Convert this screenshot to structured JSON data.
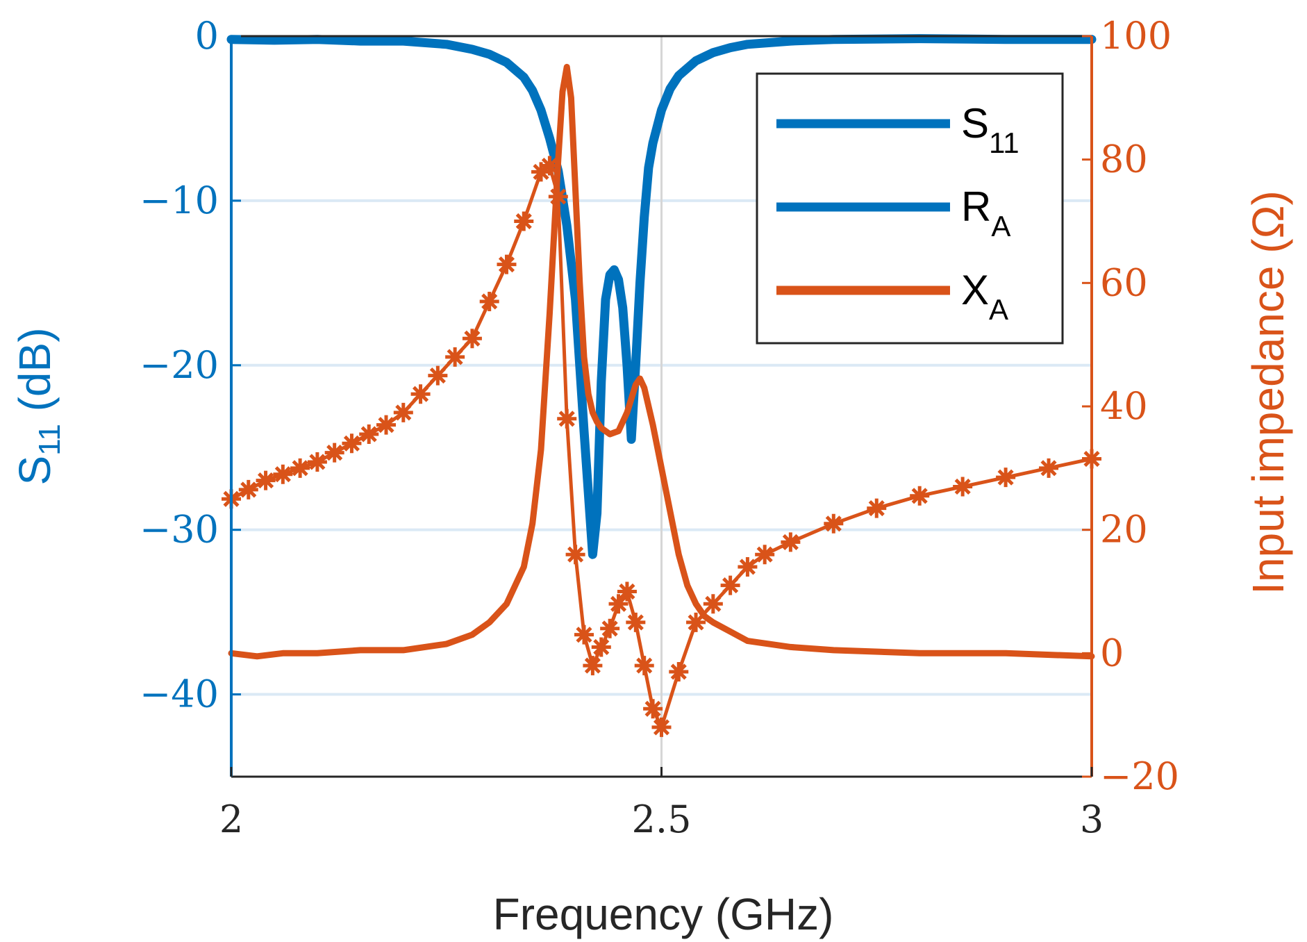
{
  "chart_data": {
    "type": "line",
    "xlabel": "Frequency (GHz)",
    "ylabel_left": {
      "main": "S",
      "sub": "11",
      "rest": " (dB)"
    },
    "ylabel_right": "Input impedance (Ω)",
    "xlim": [
      2,
      3
    ],
    "ylim_left": [
      -45,
      0
    ],
    "ylim_right": [
      -20,
      100
    ],
    "xticks": [
      2,
      2.5,
      3
    ],
    "xtick_labels": [
      "2",
      "2.5",
      "3"
    ],
    "yticks_left": [
      0,
      -10,
      -20,
      -30,
      -40
    ],
    "ytick_labels_left": [
      "0",
      "−10",
      "−20",
      "−30",
      "−40"
    ],
    "yticks_right": [
      100,
      80,
      60,
      40,
      20,
      0,
      -20
    ],
    "ytick_labels_right": [
      "100",
      "80",
      "60",
      "40",
      "20",
      "0",
      "−20"
    ],
    "grid": true,
    "legend": {
      "position": "top-right",
      "entries": [
        {
          "main": "S",
          "sub": "11",
          "color": "#0072BD"
        },
        {
          "main": "R",
          "sub": "A",
          "color": "#0072BD"
        },
        {
          "main": "X",
          "sub": "A",
          "color": "#D95319"
        }
      ]
    },
    "colors": {
      "s11": "#0072BD",
      "impedance": "#D95319",
      "axes": "#262626",
      "grid": "#dbe9f5"
    },
    "series": [
      {
        "name": "S11",
        "axis": "left",
        "color": "#0072BD",
        "x": [
          2.0,
          2.05,
          2.1,
          2.15,
          2.2,
          2.25,
          2.28,
          2.3,
          2.32,
          2.34,
          2.35,
          2.36,
          2.37,
          2.38,
          2.39,
          2.4,
          2.41,
          2.42,
          2.425,
          2.43,
          2.435,
          2.44,
          2.445,
          2.45,
          2.455,
          2.46,
          2.465,
          2.47,
          2.475,
          2.48,
          2.485,
          2.49,
          2.5,
          2.51,
          2.52,
          2.54,
          2.56,
          2.58,
          2.6,
          2.65,
          2.7,
          2.8,
          2.9,
          3.0
        ],
        "y": [
          -0.2,
          -0.25,
          -0.2,
          -0.3,
          -0.3,
          -0.5,
          -0.8,
          -1.1,
          -1.6,
          -2.5,
          -3.3,
          -4.5,
          -6.2,
          -8.2,
          -11.5,
          -16,
          -24,
          -31.5,
          -29,
          -21,
          -16,
          -14.5,
          -14.2,
          -14.8,
          -16.5,
          -20,
          -24.5,
          -20,
          -15,
          -11,
          -8,
          -6.5,
          -4.5,
          -3.2,
          -2.4,
          -1.5,
          -1.0,
          -0.7,
          -0.5,
          -0.3,
          -0.2,
          -0.15,
          -0.2,
          -0.2
        ]
      },
      {
        "name": "RA",
        "axis": "right",
        "color": "#D95319",
        "x": [
          2.0,
          2.03,
          2.06,
          2.1,
          2.15,
          2.2,
          2.25,
          2.28,
          2.3,
          2.32,
          2.34,
          2.35,
          2.36,
          2.37,
          2.38,
          2.385,
          2.39,
          2.395,
          2.4,
          2.405,
          2.41,
          2.415,
          2.42,
          2.425,
          2.43,
          2.44,
          2.45,
          2.46,
          2.47,
          2.475,
          2.48,
          2.49,
          2.5,
          2.51,
          2.52,
          2.53,
          2.54,
          2.55,
          2.56,
          2.58,
          2.6,
          2.65,
          2.7,
          2.8,
          2.9,
          3.0
        ],
        "y": [
          0,
          -0.5,
          0,
          0,
          0.5,
          0.5,
          1.5,
          3,
          5,
          8,
          14,
          21,
          33,
          55,
          80,
          91,
          95,
          90,
          75,
          60,
          48,
          42,
          39,
          37.5,
          36.5,
          35.5,
          36,
          39,
          43.5,
          44.5,
          43,
          37,
          30,
          23,
          16,
          11,
          8,
          6,
          5,
          3.5,
          2,
          1,
          0.5,
          0,
          0,
          -0.5
        ]
      },
      {
        "name": "XA",
        "axis": "right",
        "color": "#D95319",
        "markers": true,
        "x": [
          2.0,
          2.02,
          2.04,
          2.06,
          2.08,
          2.1,
          2.12,
          2.14,
          2.16,
          2.18,
          2.2,
          2.22,
          2.24,
          2.26,
          2.28,
          2.3,
          2.32,
          2.34,
          2.36,
          2.37,
          2.38,
          2.39,
          2.4,
          2.41,
          2.42,
          2.43,
          2.44,
          2.45,
          2.46,
          2.47,
          2.48,
          2.49,
          2.5,
          2.52,
          2.54,
          2.56,
          2.58,
          2.6,
          2.62,
          2.65,
          2.7,
          2.75,
          2.8,
          2.85,
          2.9,
          2.95,
          3.0
        ],
        "y": [
          25,
          26.5,
          28,
          29,
          30,
          31,
          32.5,
          34,
          35.5,
          37,
          39,
          42,
          45,
          48,
          51,
          57,
          63,
          70,
          78,
          79,
          74,
          38,
          16,
          3,
          -2,
          1,
          4,
          8,
          10,
          5,
          -2,
          -9,
          -12,
          -3,
          5,
          8,
          11,
          14,
          16,
          18,
          21,
          23.5,
          25.5,
          27,
          28.5,
          30,
          31.5
        ]
      }
    ]
  }
}
